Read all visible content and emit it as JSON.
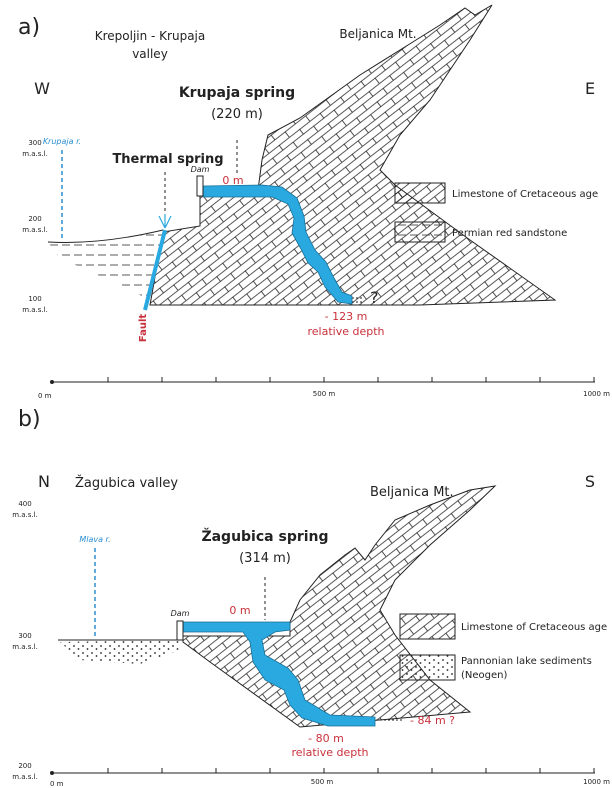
{
  "panel_a": {
    "label": "a)",
    "valley": [
      "Krepoljin - Krupaja",
      "valley"
    ],
    "mountain": "Beljanica Mt.",
    "west": "W",
    "east": "E",
    "spring_name": "Krupaja spring",
    "spring_elevation": "(220 m)",
    "river": "Krupaja r.",
    "thermal_spring": "Thermal spring",
    "dam": "Dam",
    "zero": "0 m",
    "depth": "- 123 m",
    "depth_label": "relative depth",
    "unknown": "?",
    "fault": "Fault",
    "y_axis": [
      {
        "value": "300",
        "unit": "m.a.s.l."
      },
      {
        "value": "200",
        "unit": "m.a.s.l."
      },
      {
        "value": "100",
        "unit": "m.a.s.l."
      }
    ],
    "x_axis": [
      "0 m",
      "500 m",
      "1000 m"
    ],
    "legend": [
      "Limestone of Cretaceous age",
      "Permian red sandstone"
    ]
  },
  "panel_b": {
    "label": "b)",
    "valley": "Žagubica valley",
    "mountain": "Beljanica Mt.",
    "north": "N",
    "south": "S",
    "spring_name": "Žagubica spring",
    "spring_elevation": "(314 m)",
    "river": "Mlava r.",
    "dam": "Dam",
    "zero": "0 m",
    "depth": "- 80 m",
    "depth_label": "relative depth",
    "depth_unknown": "- 84 m ?",
    "y_axis": [
      {
        "value": "400",
        "unit": "m.a.s.l."
      },
      {
        "value": "300",
        "unit": "m.a.s.l."
      },
      {
        "value": "200",
        "unit": "m.a.s.l."
      }
    ],
    "x_axis": [
      "0 m",
      "500 m",
      "1000 m"
    ],
    "legend": [
      "Limestone of Cretaceous age",
      "Pannonian lake sediments",
      "(Neogen)"
    ]
  }
}
